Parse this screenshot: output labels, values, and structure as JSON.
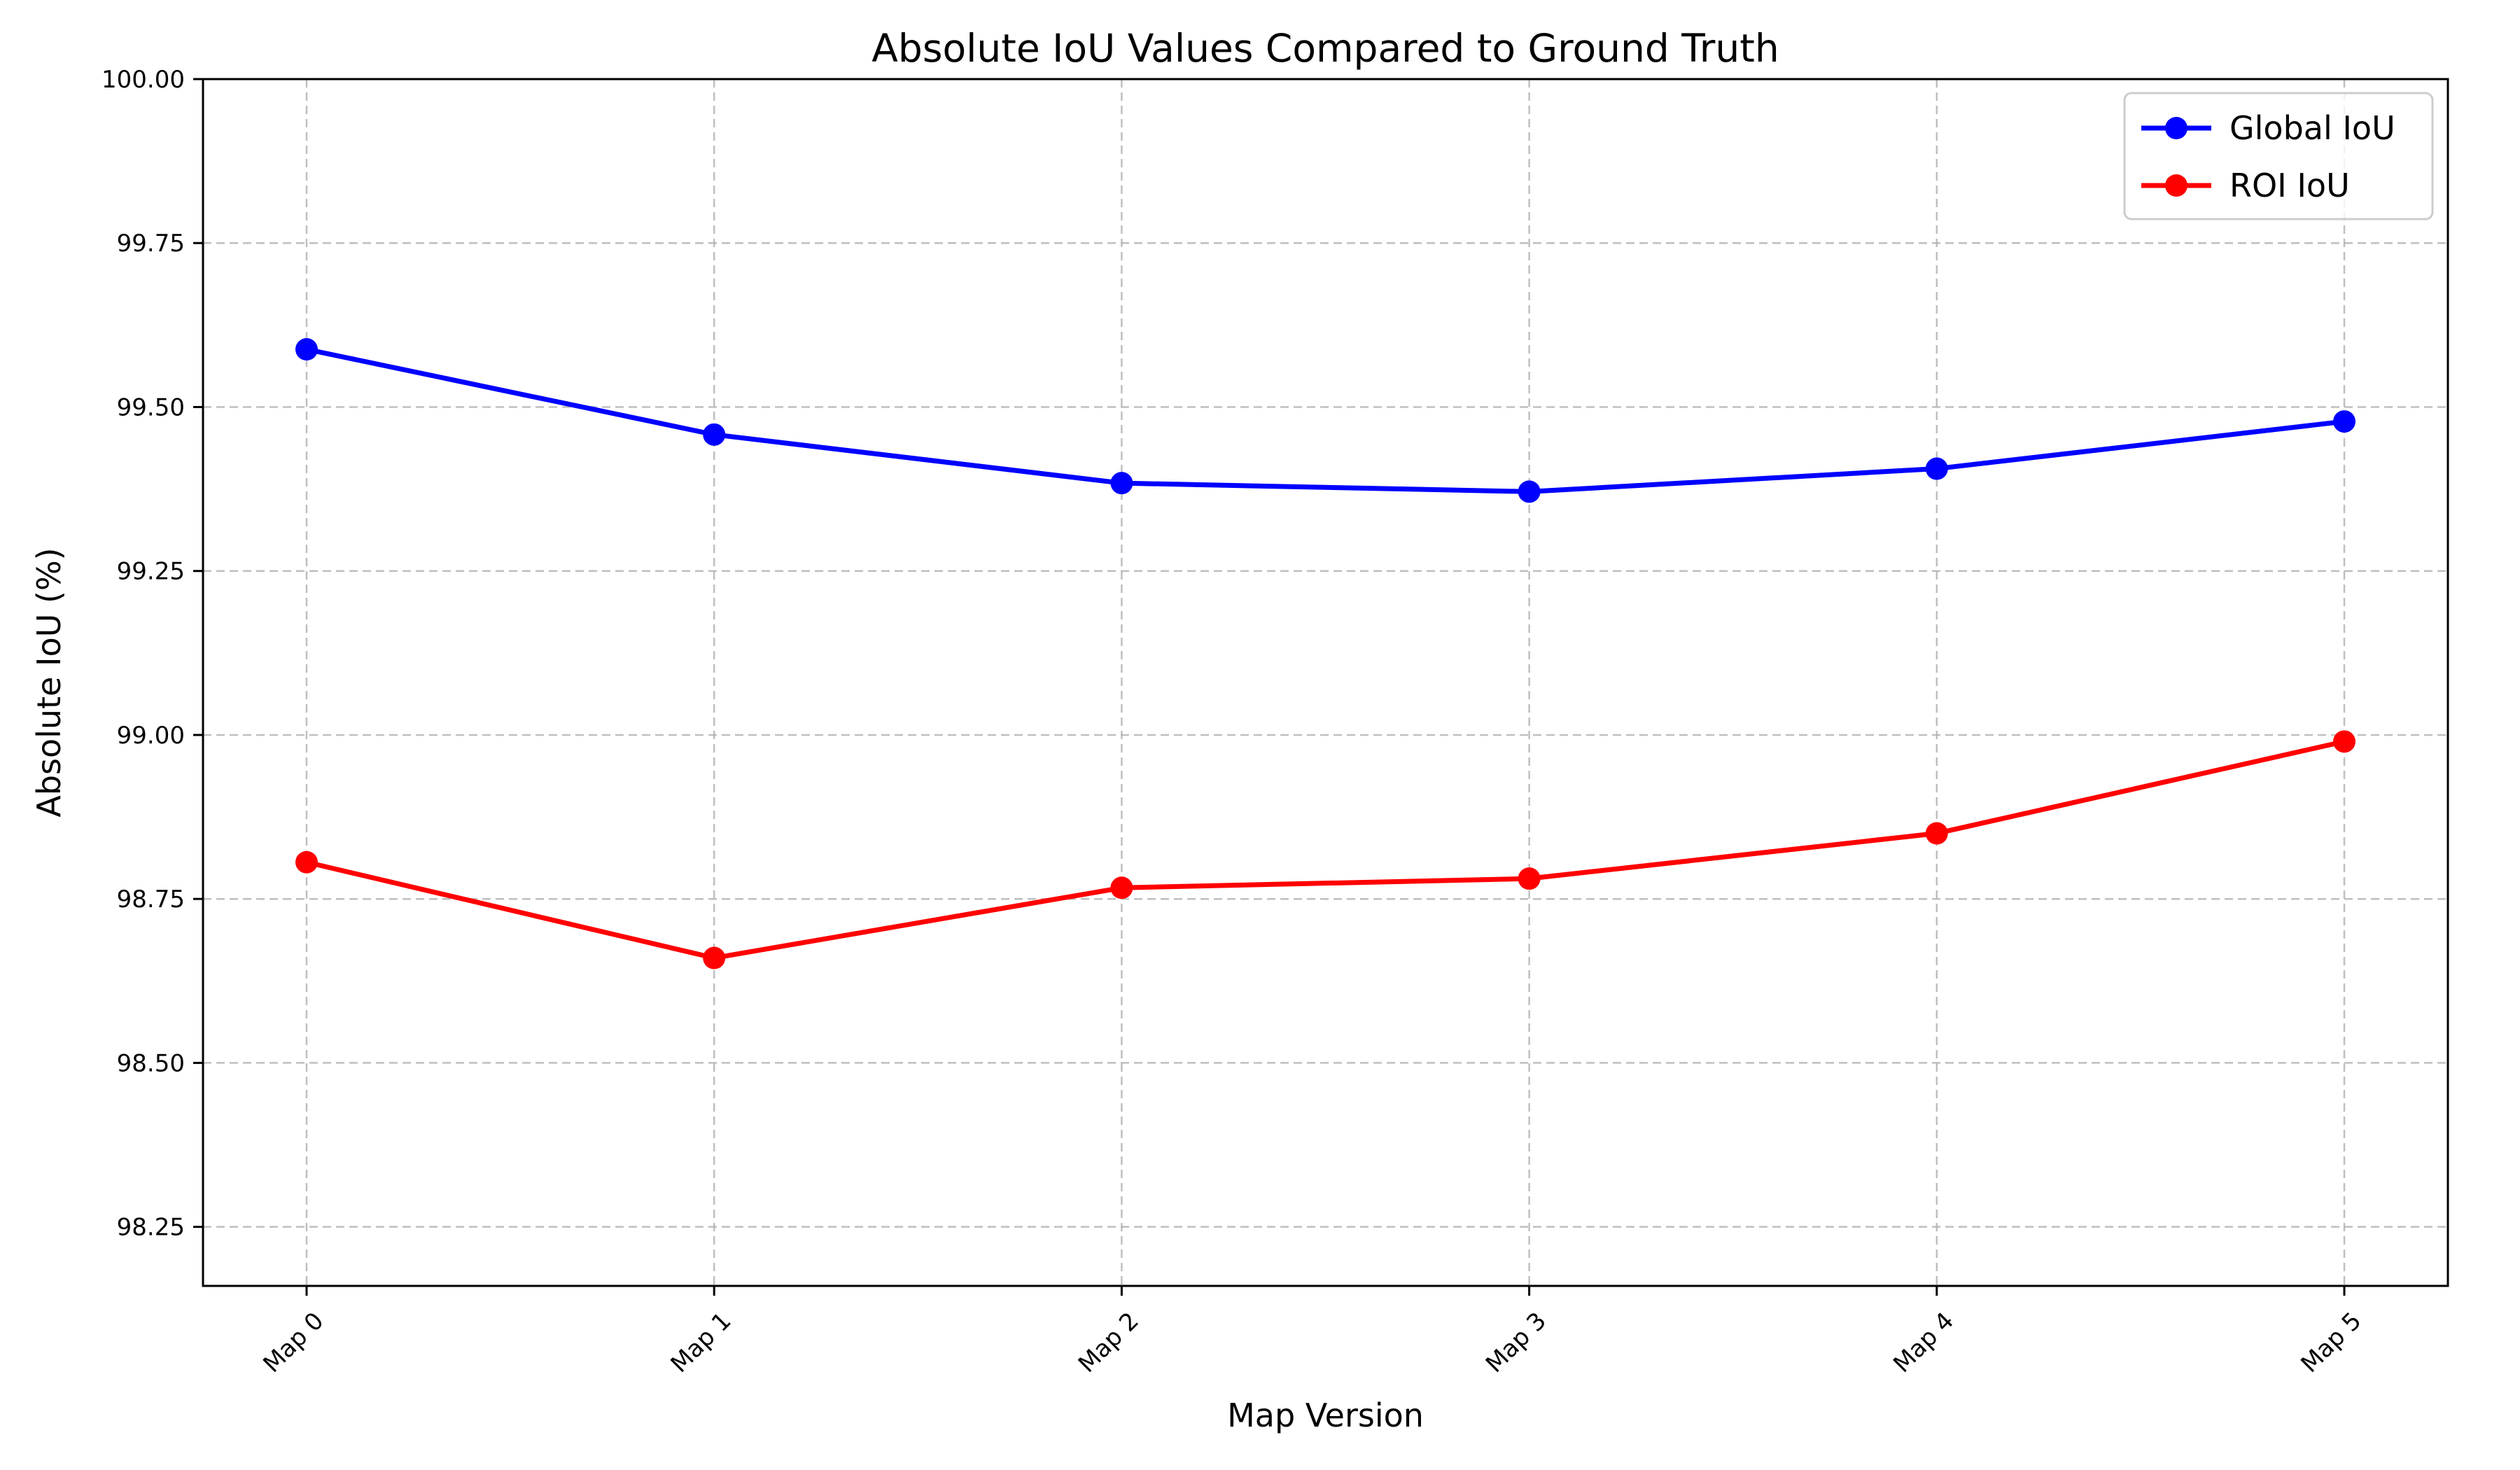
{
  "chart_data": {
    "type": "line",
    "title": "Absolute IoU Values Compared to Ground Truth",
    "xlabel": "Map Version",
    "ylabel": "Absolute IoU (%)",
    "categories": [
      "Map 0",
      "Map 1",
      "Map 2",
      "Map 3",
      "Map 4",
      "Map 5"
    ],
    "ylim": [
      98.16,
      100.0
    ],
    "yticks": [
      "98.25",
      "98.50",
      "98.75",
      "99.00",
      "99.25",
      "99.50",
      "99.75",
      "100.00"
    ],
    "grid": true,
    "legend_position": "top-right",
    "series": [
      {
        "name": "Global IoU",
        "color": "#0000ff",
        "values": [
          99.588,
          99.458,
          99.384,
          99.371,
          99.406,
          99.478
        ]
      },
      {
        "name": "ROI IoU",
        "color": "#ff0000",
        "values": [
          98.806,
          98.66,
          98.767,
          98.781,
          98.85,
          98.99
        ]
      }
    ]
  }
}
